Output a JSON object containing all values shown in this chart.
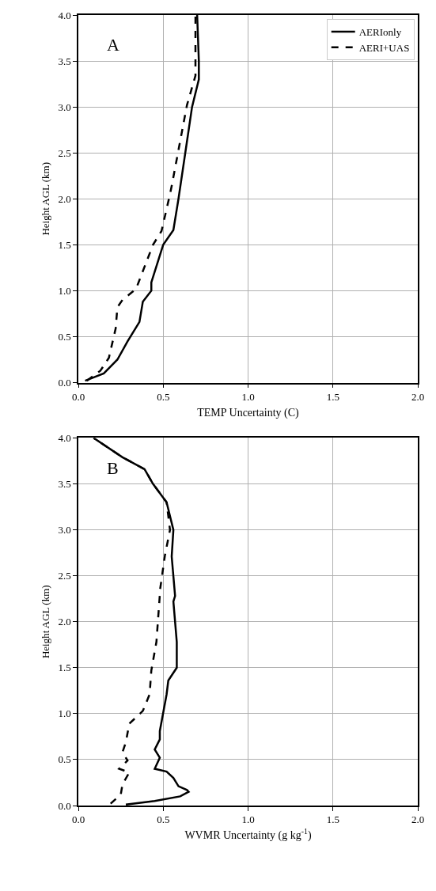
{
  "chart_data": [
    {
      "type": "line",
      "xlabel": "TEMP Uncertainty (C)",
      "ylabel": "Height AGL (km)",
      "annotations": [
        "A"
      ],
      "xlim": [
        0,
        2
      ],
      "xticks": [
        {
          "value": 0,
          "label": "0.0"
        },
        {
          "value": 0.5,
          "label": "0.5"
        },
        {
          "value": 1,
          "label": "1.0"
        },
        {
          "value": 1.5,
          "label": "1.5"
        },
        {
          "value": 2,
          "label": "2.0"
        }
      ],
      "ylim": [
        0,
        4
      ],
      "yticks": [
        {
          "value": 0,
          "label": "0.0"
        },
        {
          "value": 0.5,
          "label": "0.5"
        },
        {
          "value": 1,
          "label": "1.0"
        },
        {
          "value": 1.5,
          "label": "1.5"
        },
        {
          "value": 2,
          "label": "2.0"
        },
        {
          "value": 2.5,
          "label": "2.5"
        },
        {
          "value": 3,
          "label": "3.0"
        },
        {
          "value": 3.5,
          "label": "3.5"
        },
        {
          "value": 4,
          "label": "4.0"
        }
      ],
      "grid": true,
      "legend": "top right",
      "series": [
        {
          "name": "AERIonly",
          "color": "#000000",
          "line_style": "solid",
          "x": [
            0.04,
            0.15,
            0.23,
            0.29,
            0.36,
            0.38,
            0.43,
            0.43,
            0.5,
            0.56,
            0.59,
            0.63,
            0.67,
            0.71,
            0.71,
            0.7
          ],
          "values": [
            0.02,
            0.1,
            0.25,
            0.45,
            0.66,
            0.88,
            1.0,
            1.09,
            1.5,
            1.66,
            2.0,
            2.5,
            3.0,
            3.3,
            3.5,
            4.0
          ]
        },
        {
          "name": "AERI+UAS",
          "color": "#000000",
          "line_style": "dashed",
          "x": [
            0.05,
            0.13,
            0.18,
            0.22,
            0.23,
            0.26,
            0.34,
            0.44,
            0.49,
            0.54,
            0.55,
            0.64,
            0.69,
            0.69
          ],
          "values": [
            0.02,
            0.13,
            0.27,
            0.59,
            0.82,
            0.9,
            1.02,
            1.5,
            1.65,
            2.05,
            2.14,
            3.02,
            3.34,
            4.0
          ]
        }
      ]
    },
    {
      "type": "line",
      "xlabel": "WVMR Uncertainty (g kg$^{-1}$)",
      "ylabel": "Height AGL (km)",
      "annotations": [
        "B"
      ],
      "xlim": [
        0,
        2
      ],
      "xticks": [
        {
          "value": 0,
          "label": "0.0"
        },
        {
          "value": 0.5,
          "label": "0.5"
        },
        {
          "value": 1,
          "label": "1.0"
        },
        {
          "value": 1.5,
          "label": "1.5"
        },
        {
          "value": 2,
          "label": "2.0"
        }
      ],
      "ylim": [
        0,
        4
      ],
      "yticks": [
        {
          "value": 0,
          "label": "0.0"
        },
        {
          "value": 0.5,
          "label": "0.5"
        },
        {
          "value": 1,
          "label": "1.0"
        },
        {
          "value": 1.5,
          "label": "1.5"
        },
        {
          "value": 2,
          "label": "2.0"
        },
        {
          "value": 2.5,
          "label": "2.5"
        },
        {
          "value": 3,
          "label": "3.0"
        },
        {
          "value": 3.5,
          "label": "3.5"
        },
        {
          "value": 4,
          "label": "4.0"
        }
      ],
      "grid": true,
      "series": [
        {
          "color": "#000000",
          "line_style": "solid",
          "x": [
            0.28,
            0.45,
            0.6,
            0.65,
            0.64,
            0.59,
            0.56,
            0.52,
            0.45,
            0.48,
            0.45,
            0.48,
            0.48,
            0.52,
            0.53,
            0.58,
            0.58,
            0.56,
            0.57,
            0.55,
            0.56,
            0.52,
            0.44,
            0.39,
            0.26,
            0.09
          ],
          "values": [
            0.01,
            0.05,
            0.1,
            0.15,
            0.17,
            0.21,
            0.3,
            0.37,
            0.4,
            0.52,
            0.61,
            0.72,
            0.81,
            1.21,
            1.36,
            1.5,
            1.78,
            2.22,
            2.28,
            2.71,
            3.0,
            3.3,
            3.5,
            3.66,
            3.79,
            4.0
          ]
        },
        {
          "color": "#000000",
          "line_style": "dashed",
          "x": [
            0.19,
            0.25,
            0.26,
            0.3,
            0.24,
            0.29,
            0.26,
            0.28,
            0.3,
            0.38,
            0.42,
            0.43,
            0.46,
            0.48,
            0.48,
            0.51,
            0.54,
            0.52,
            0.44,
            0.39,
            0.26,
            0.09
          ],
          "values": [
            0.02,
            0.12,
            0.23,
            0.36,
            0.4,
            0.49,
            0.58,
            0.69,
            0.89,
            1.03,
            1.21,
            1.47,
            1.78,
            2.29,
            2.33,
            2.72,
            3.0,
            3.3,
            3.5,
            3.66,
            3.79,
            4.0
          ]
        }
      ]
    }
  ]
}
